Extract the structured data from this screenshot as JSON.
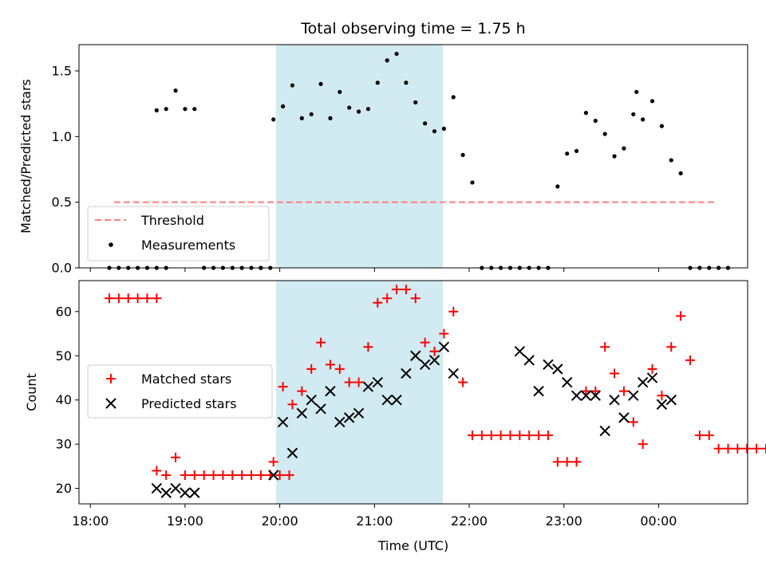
{
  "chart_data": [
    {
      "type": "scatter",
      "title": "Total observing time = 1.75 h",
      "xlabel": "",
      "ylabel": "Matched/Predicted stars",
      "ylim": [
        0,
        1.7
      ],
      "yticks": [
        "0.0",
        "0.5",
        "1.0",
        "1.5"
      ],
      "legend_position": "lower-left",
      "highlight_span": {
        "start": "19:58",
        "end": "21:43",
        "color": "#add8e6"
      },
      "series": [
        {
          "name": "Threshold",
          "kind": "dashed-line",
          "color": "#ff7f7f",
          "x": [
            "18:15",
            "24:35"
          ],
          "y": [
            0.5,
            0.5
          ]
        },
        {
          "name": "Measurements",
          "kind": "dot",
          "color": "#000000",
          "x": [
            "18:12",
            "18:18",
            "18:24",
            "18:30",
            "18:36",
            "18:42",
            "18:48",
            "18:42",
            "18:48",
            "18:54",
            "19:00",
            "19:06",
            "19:12",
            "19:18",
            "19:24",
            "19:30",
            "19:36",
            "19:42",
            "19:48",
            "19:54",
            "19:48",
            "19:56",
            "20:02",
            "20:08",
            "20:14",
            "20:20",
            "20:26",
            "20:32",
            "20:38",
            "20:44",
            "20:50",
            "20:56",
            "21:02",
            "21:08",
            "21:14",
            "21:20",
            "21:26",
            "21:32",
            "21:38",
            "21:44",
            "21:50",
            "21:56",
            "22:02",
            "22:08",
            "22:14",
            "22:20",
            "22:26",
            "22:32",
            "22:38",
            "22:44",
            "22:50",
            "22:56",
            "23:02",
            "23:08",
            "23:14",
            "23:20",
            "23:26",
            "23:32",
            "23:38",
            "23:44",
            "23:50",
            "23:56",
            "23:46",
            "24:02",
            "24:08",
            "24:14",
            "24:20",
            "24:26",
            "24:32",
            "24:38",
            "24:44"
          ],
          "y": [
            0,
            0,
            0,
            0,
            0,
            0,
            0,
            1.2,
            1.21,
            1.35,
            1.21,
            1.21,
            0,
            0,
            0,
            0,
            0,
            0,
            0,
            0,
            0,
            1.13,
            1.23,
            1.39,
            1.14,
            1.17,
            1.4,
            1.14,
            1.34,
            1.22,
            1.19,
            1.21,
            1.41,
            1.58,
            1.63,
            1.41,
            1.26,
            1.1,
            1.04,
            1.06,
            1.3,
            0.86,
            0.65,
            0,
            0,
            0,
            0,
            0,
            0,
            0,
            0,
            0.62,
            0.87,
            0.89,
            1.18,
            1.12,
            1.02,
            0.85,
            0.91,
            1.17,
            1.13,
            1.27,
            1.34,
            1.08,
            0.82,
            0.72,
            0,
            0,
            0,
            0,
            0
          ]
        }
      ]
    },
    {
      "type": "scatter",
      "title": "",
      "xlabel": "Time (UTC)",
      "ylabel": "Count",
      "ylim": [
        16.5,
        67
      ],
      "yticks": [
        "20",
        "30",
        "40",
        "50",
        "60"
      ],
      "xticks": [
        "18:00",
        "19:00",
        "20:00",
        "21:00",
        "22:00",
        "23:00",
        "00:00"
      ],
      "legend_position": "center-left",
      "highlight_span": {
        "start": "19:58",
        "end": "21:43",
        "color": "#add8e6"
      },
      "series": [
        {
          "name": "Matched stars",
          "kind": "plus",
          "color": "#ff0000",
          "x": [
            "18:12",
            "18:18",
            "18:24",
            "18:30",
            "18:36",
            "18:42",
            "18:42",
            "18:48",
            "18:54",
            "19:00",
            "19:06",
            "19:12",
            "19:18",
            "19:24",
            "19:30",
            "19:36",
            "19:42",
            "19:48",
            "19:54",
            "20:00",
            "20:06",
            "19:56",
            "20:02",
            "20:08",
            "20:14",
            "20:20",
            "20:26",
            "20:32",
            "20:38",
            "20:44",
            "20:50",
            "20:56",
            "21:02",
            "21:08",
            "21:14",
            "21:20",
            "21:26",
            "21:32",
            "21:38",
            "21:44",
            "21:50",
            "21:56",
            "22:02",
            "22:08",
            "22:14",
            "22:20",
            "22:26",
            "22:32",
            "22:38",
            "22:44",
            "22:50",
            "22:56",
            "23:02",
            "23:08",
            "23:14",
            "23:20",
            "23:26",
            "23:32",
            "23:38",
            "23:44",
            "23:50",
            "23:56",
            "24:02",
            "24:08",
            "24:14",
            "24:20",
            "24:26",
            "24:32",
            "24:38",
            "24:44",
            "24:50",
            "24:56",
            "25:02",
            "25:08",
            "25:14",
            "25:20",
            "25:26",
            "25:32",
            "25:38"
          ],
          "y": [
            63,
            63,
            63,
            63,
            63,
            63,
            24,
            23,
            27,
            23,
            23,
            23,
            23,
            23,
            23,
            23,
            23,
            23,
            23,
            23,
            23,
            26,
            43,
            39,
            42,
            47,
            53,
            48,
            47,
            44,
            44,
            52,
            62,
            63,
            65,
            65,
            63,
            53,
            51,
            55,
            60,
            44,
            32,
            32,
            32,
            32,
            32,
            32,
            32,
            32,
            32,
            26,
            26,
            26,
            42,
            42,
            52,
            46,
            42,
            35,
            30,
            47,
            41,
            52,
            59,
            49,
            32,
            32,
            29,
            29,
            29,
            29,
            29,
            29,
            29,
            29,
            29,
            29,
            29
          ]
        },
        {
          "name": "Predicted stars",
          "kind": "x",
          "color": "#000000",
          "x": [
            "18:42",
            "18:48",
            "18:54",
            "19:00",
            "19:06",
            "19:56",
            "20:02",
            "20:08",
            "20:14",
            "20:20",
            "20:26",
            "20:32",
            "20:38",
            "20:44",
            "20:50",
            "20:56",
            "21:02",
            "21:08",
            "21:14",
            "21:20",
            "21:26",
            "21:32",
            "21:38",
            "21:44",
            "21:50",
            "22:32",
            "22:38",
            "22:44",
            "22:50",
            "22:56",
            "23:02",
            "23:08",
            "23:14",
            "23:20",
            "23:26",
            "23:32",
            "23:38",
            "23:44",
            "23:50",
            "23:56",
            "24:02",
            "24:08"
          ],
          "y": [
            20,
            19,
            20,
            19,
            19,
            23,
            35,
            28,
            37,
            40,
            38,
            42,
            35,
            36,
            37,
            43,
            44,
            40,
            40,
            46,
            50,
            48,
            49,
            52,
            46,
            51,
            49,
            42,
            48,
            47,
            44,
            41,
            41,
            41,
            33,
            40,
            36,
            41,
            44,
            45,
            39,
            40
          ]
        }
      ]
    }
  ]
}
